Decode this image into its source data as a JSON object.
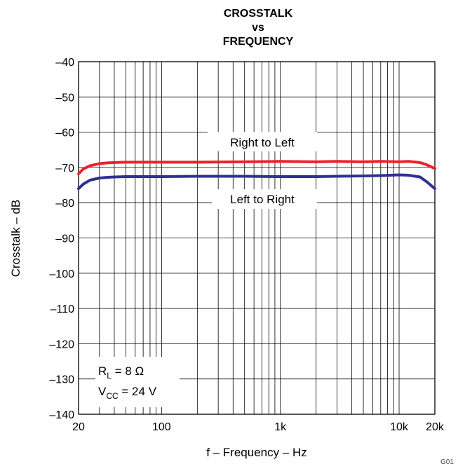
{
  "chart_data": {
    "type": "line",
    "title_lines": [
      "CROSSTALK",
      "vs",
      "FREQUENCY"
    ],
    "xlabel": "f – Frequency – Hz",
    "ylabel": "Crosstalk – dB",
    "x_scale": "log",
    "xlim": [
      20,
      20000
    ],
    "ylim": [
      -140,
      -40
    ],
    "x_ticks": [
      {
        "value": 20,
        "label": "20"
      },
      {
        "value": 100,
        "label": "100"
      },
      {
        "value": 1000,
        "label": "1k"
      },
      {
        "value": 10000,
        "label": "10k"
      },
      {
        "value": 20000,
        "label": "20k"
      }
    ],
    "y_ticks": [
      {
        "value": -40,
        "label": "–40"
      },
      {
        "value": -50,
        "label": "–50"
      },
      {
        "value": -60,
        "label": "–60"
      },
      {
        "value": -70,
        "label": "–70"
      },
      {
        "value": -80,
        "label": "–80"
      },
      {
        "value": -90,
        "label": "–90"
      },
      {
        "value": -100,
        "label": "–100"
      },
      {
        "value": -110,
        "label": "–110"
      },
      {
        "value": -120,
        "label": "–120"
      },
      {
        "value": -130,
        "label": "–130"
      },
      {
        "value": -140,
        "label": "–140"
      }
    ],
    "grid": true,
    "series": [
      {
        "name": "Right to Left",
        "color": "#e8242b",
        "x": [
          20,
          22,
          25,
          30,
          35,
          40,
          50,
          70,
          100,
          200,
          500,
          1000,
          2000,
          3000,
          5000,
          7000,
          10000,
          12000,
          15000,
          17000,
          20000
        ],
        "y": [
          -71.8,
          -70.4,
          -69.5,
          -68.9,
          -68.7,
          -68.6,
          -68.5,
          -68.5,
          -68.5,
          -68.5,
          -68.4,
          -68.3,
          -68.4,
          -68.3,
          -68.4,
          -68.3,
          -68.4,
          -68.3,
          -68.6,
          -69.2,
          -70.3
        ]
      },
      {
        "name": "Left to Right",
        "color": "#2e3192",
        "x": [
          20,
          22,
          25,
          30,
          35,
          40,
          50,
          70,
          100,
          200,
          500,
          1000,
          2000,
          3000,
          5000,
          7000,
          10000,
          12000,
          15000,
          17000,
          20000
        ],
        "y": [
          -76,
          -74.7,
          -73.6,
          -73.0,
          -72.8,
          -72.7,
          -72.6,
          -72.6,
          -72.6,
          -72.5,
          -72.5,
          -72.6,
          -72.6,
          -72.5,
          -72.4,
          -72.3,
          -72.1,
          -72.2,
          -72.7,
          -74.0,
          -76.0
        ]
      }
    ],
    "annotations": {
      "rl_main": "R",
      "rl_sub": "L",
      "rl_rest": " = 8 Ω",
      "vcc_main": "V",
      "vcc_sub": "CC",
      "vcc_rest": " = 24 V"
    },
    "corner_mark": "G01"
  }
}
